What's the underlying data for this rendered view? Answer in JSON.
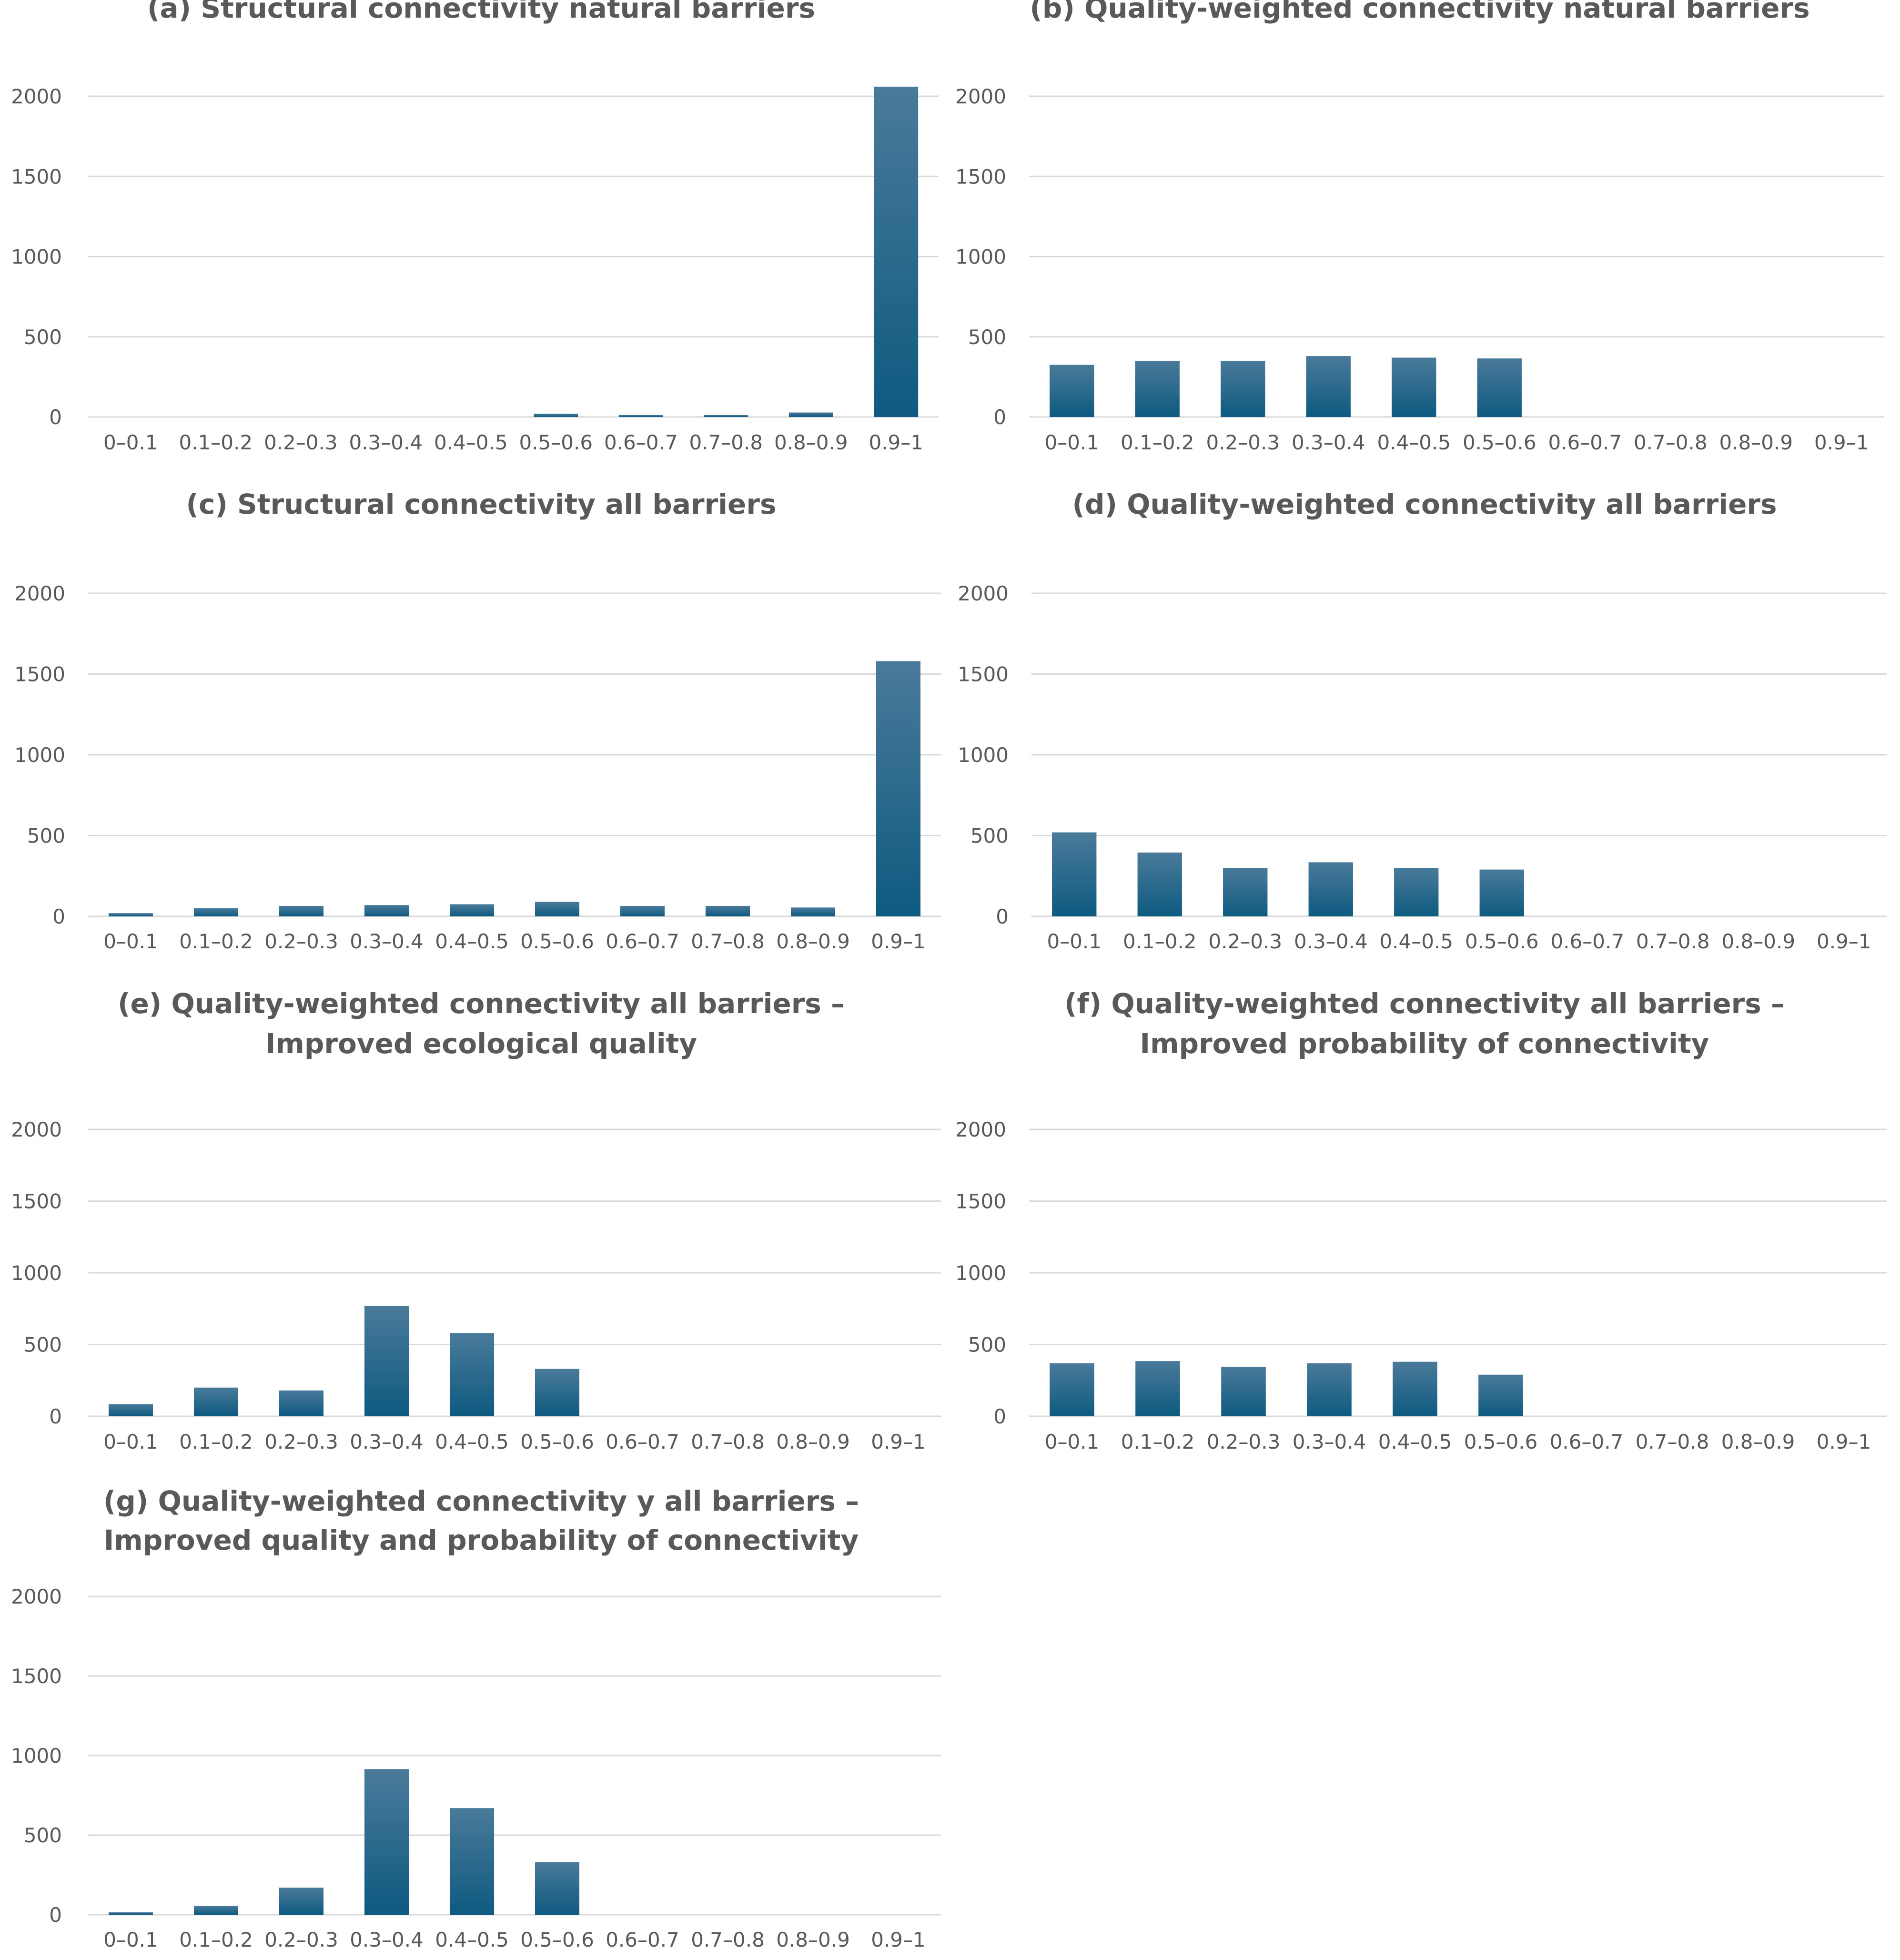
{
  "colors": {
    "bar_top": "#4a7a9a",
    "bar_bottom": "#0e5a80",
    "grid": "#d9d9d9",
    "text": "#595959",
    "background": "#ffffff"
  },
  "chart_data": [
    {
      "id": "a",
      "type": "bar",
      "title_lines": [
        "(a) Structural connectivity natural barriers"
      ],
      "categories": [
        "0–0.1",
        "0.1–0.2",
        "0.2–0.3",
        "0.3–0.4",
        "0.4–0.5",
        "0.5–0.6",
        "0.6–0.7",
        "0.7–0.8",
        "0.8–0.9",
        "0.9–1"
      ],
      "values": [
        0,
        0,
        0,
        0,
        0,
        20,
        12,
        12,
        28,
        2060
      ],
      "ylim": [
        0,
        2000
      ],
      "yticks": [
        "0",
        "500",
        "1000",
        "1500",
        "2000"
      ],
      "xlabel": "",
      "ylabel": "",
      "grid": true,
      "legend": "none"
    },
    {
      "id": "b",
      "type": "bar",
      "title_lines": [
        "(b) Quality-weighted connectivity natural barriers"
      ],
      "categories": [
        "0–0.1",
        "0.1–0.2",
        "0.2–0.3",
        "0.3–0.4",
        "0.4–0.5",
        "0.5–0.6",
        "0.6–0.7",
        "0.7–0.8",
        "0.8–0.9",
        "0.9–1"
      ],
      "values": [
        325,
        350,
        350,
        380,
        370,
        365,
        0,
        0,
        0,
        0
      ],
      "ylim": [
        0,
        2000
      ],
      "yticks": [
        "0",
        "500",
        "1000",
        "1500",
        "2000"
      ],
      "xlabel": "",
      "ylabel": "",
      "grid": true,
      "legend": "none"
    },
    {
      "id": "c",
      "type": "bar",
      "title_lines": [
        "(c) Structural connectivity all barriers"
      ],
      "categories": [
        "0–0.1",
        "0.1–0.2",
        "0.2–0.3",
        "0.3–0.4",
        "0.4–0.5",
        "0.5–0.6",
        "0.6–0.7",
        "0.7–0.8",
        "0.8–0.9",
        "0.9–1"
      ],
      "values": [
        20,
        50,
        65,
        70,
        75,
        90,
        65,
        65,
        55,
        1580
      ],
      "ylim": [
        0,
        2000
      ],
      "yticks": [
        "0",
        "500",
        "1000",
        "1500",
        "2000"
      ],
      "xlabel": "",
      "ylabel": "",
      "grid": true,
      "legend": "none"
    },
    {
      "id": "d",
      "type": "bar",
      "title_lines": [
        "(d) Quality-weighted connectivity all barriers"
      ],
      "categories": [
        "0–0.1",
        "0.1–0.2",
        "0.2–0.3",
        "0.3–0.4",
        "0.4–0.5",
        "0.5–0.6",
        "0.6–0.7",
        "0.7–0.8",
        "0.8–0.9",
        "0.9–1"
      ],
      "values": [
        520,
        395,
        300,
        335,
        300,
        290,
        0,
        0,
        0,
        0
      ],
      "ylim": [
        0,
        2000
      ],
      "yticks": [
        "0",
        "500",
        "1000",
        "1500",
        "2000"
      ],
      "xlabel": "",
      "ylabel": "",
      "grid": true,
      "legend": "none"
    },
    {
      "id": "e",
      "type": "bar",
      "title_lines": [
        "(e) Quality-weighted connectivity  all barriers –",
        "Improved ecological quality"
      ],
      "categories": [
        "0–0.1",
        "0.1–0.2",
        "0.2–0.3",
        "0.3–0.4",
        "0.4–0.5",
        "0.5–0.6",
        "0.6–0.7",
        "0.7–0.8",
        "0.8–0.9",
        "0.9–1"
      ],
      "values": [
        85,
        200,
        180,
        770,
        580,
        330,
        0,
        0,
        0,
        0
      ],
      "ylim": [
        0,
        2000
      ],
      "yticks": [
        "0",
        "500",
        "1000",
        "1500",
        "2000"
      ],
      "xlabel": "",
      "ylabel": "",
      "grid": true,
      "legend": "none"
    },
    {
      "id": "f",
      "type": "bar",
      "title_lines": [
        "(f) Quality-weighted connectivity  all barriers –",
        "Improved probability of connectivity"
      ],
      "categories": [
        "0–0.1",
        "0.1–0.2",
        "0.2–0.3",
        "0.3–0.4",
        "0.4–0.5",
        "0.5–0.6",
        "0.6–0.7",
        "0.7–0.8",
        "0.8–0.9",
        "0.9–1"
      ],
      "values": [
        370,
        385,
        345,
        370,
        380,
        290,
        0,
        0,
        0,
        0
      ],
      "ylim": [
        0,
        2000
      ],
      "yticks": [
        "0",
        "500",
        "1000",
        "1500",
        "2000"
      ],
      "xlabel": "",
      "ylabel": "",
      "grid": true,
      "legend": "none"
    },
    {
      "id": "g",
      "type": "bar",
      "title_lines": [
        "(g) Quality-weighted connectivity y all barriers –",
        "Improved quality and probability of connectivity"
      ],
      "categories": [
        "0–0.1",
        "0.1–0.2",
        "0.2–0.3",
        "0.3–0.4",
        "0.4–0.5",
        "0.5–0.6",
        "0.6–0.7",
        "0.7–0.8",
        "0.8–0.9",
        "0.9–1"
      ],
      "values": [
        15,
        55,
        170,
        915,
        670,
        330,
        0,
        0,
        0,
        0
      ],
      "ylim": [
        0,
        2000
      ],
      "yticks": [
        "0",
        "500",
        "1000",
        "1500",
        "2000"
      ],
      "xlabel": "",
      "ylabel": "",
      "grid": true,
      "legend": "none"
    }
  ]
}
